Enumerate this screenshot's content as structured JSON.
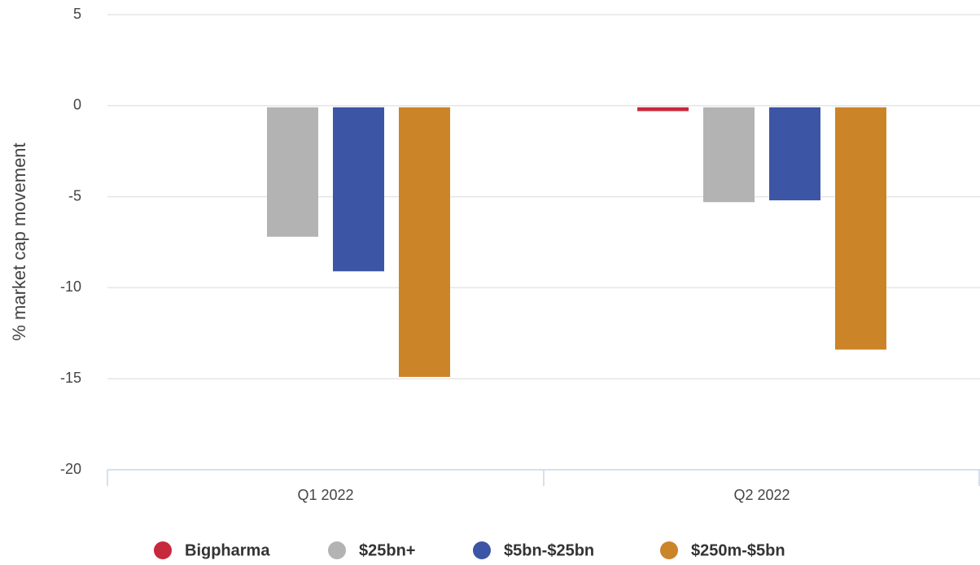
{
  "chart_data": {
    "type": "bar",
    "y_label": "% market cap movement",
    "categories": [
      "Q1 2022",
      "Q2 2022"
    ],
    "series": [
      {
        "name": "Bigpharma",
        "color": "#c8283c",
        "values": [
          null,
          -0.3
        ]
      },
      {
        "name": "$25bn+",
        "color": "#b3b3b3",
        "values": [
          -7.2,
          -5.3
        ]
      },
      {
        "name": "$5bn-$25bn",
        "color": "#3c55a5",
        "values": [
          -9.1,
          -5.2
        ]
      },
      {
        "name": "$250m-$5bn",
        "color": "#cc8428",
        "values": [
          -14.9,
          -13.4
        ]
      }
    ],
    "ylim": [
      -20,
      5
    ],
    "yticks": [
      -20,
      -15,
      -10,
      -5,
      0,
      5
    ],
    "grid": true,
    "legend": "bottom"
  }
}
